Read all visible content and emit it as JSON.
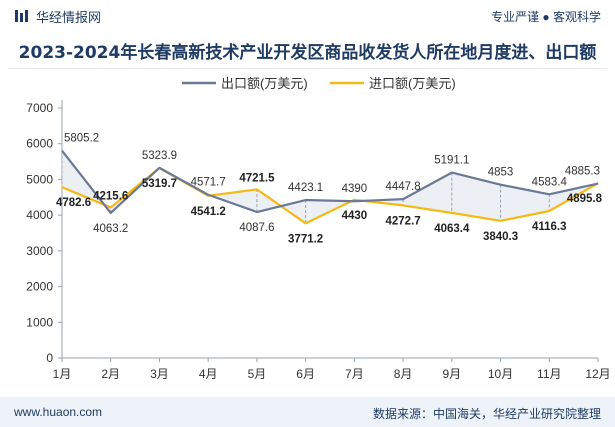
{
  "header": {
    "brand": "华经情报网",
    "slogan": "专业严谨 ● 客观科学",
    "title": "2023-2024年长春高新技术产业开发区商品收发货人所在地月度进、出口额"
  },
  "footer": {
    "site": "www.huaon.com",
    "source": "数据来源：中国海关，华经产业研究院整理"
  },
  "colors": {
    "export": "#6a7a96",
    "import": "#f6b914",
    "brand": "#1f3b63"
  },
  "chart_data": {
    "type": "line",
    "categories": [
      "1月",
      "2月",
      "3月",
      "4月",
      "5月",
      "6月",
      "7月",
      "8月",
      "9月",
      "10月",
      "11月",
      "12月"
    ],
    "series": [
      {
        "name": "出口额(万美元)",
        "values": [
          5805.2,
          4063.2,
          5323.9,
          4571.7,
          4087.6,
          4423.1,
          4390,
          4447.8,
          5191.1,
          4853,
          4583.4,
          4885.3
        ],
        "labels": [
          "5805.2",
          "4063.2",
          "5323.9",
          "4571.7",
          "4087.6",
          "4423.1",
          "4390",
          "4447.8",
          "5191.1",
          "4853",
          "4583.4",
          "4885.3"
        ]
      },
      {
        "name": "进口额(万美元)",
        "values": [
          4782.6,
          4215.6,
          5319.7,
          4541.2,
          4721.5,
          3771.2,
          4430,
          4272.7,
          4063.4,
          3840.3,
          4116.3,
          4895.8
        ],
        "labels": [
          "4782.6",
          "4215.6",
          "5319.7",
          "4541.2",
          "4721.5",
          "3771.2",
          "4430",
          "4272.7",
          "4063.4",
          "3840.3",
          "4116.3",
          "4895.8"
        ]
      }
    ],
    "ylim": [
      0,
      7000
    ],
    "yticks": [
      0,
      1000,
      2000,
      3000,
      4000,
      5000,
      6000,
      7000
    ],
    "ytick_labels": [
      "0",
      "1000",
      "2000",
      "3000",
      "4000",
      "5000",
      "6000",
      "7000"
    ],
    "legend_position": "top-center",
    "grid": false
  }
}
